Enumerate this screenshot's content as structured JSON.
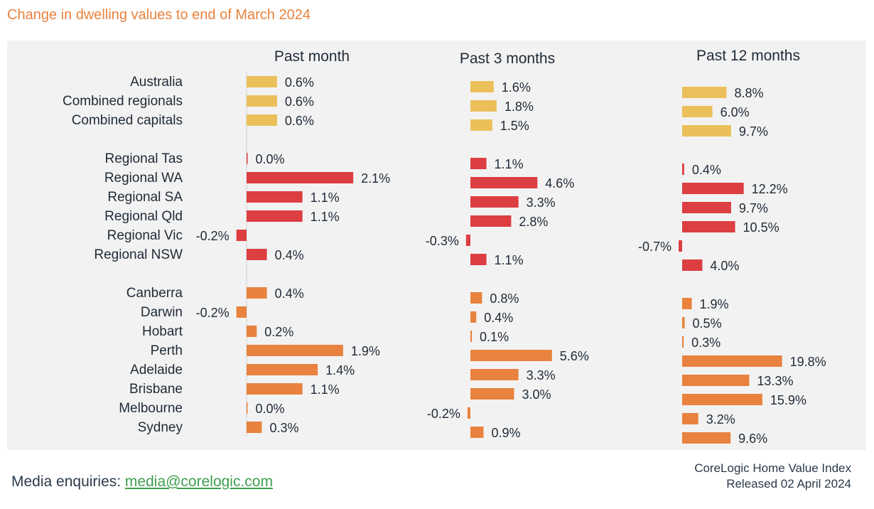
{
  "page": {
    "title": "Change in dwelling values to end of March 2024",
    "footer_label": "Media enquiries: ",
    "footer_email": "media@corelogic.com",
    "source_line1": "CoreLogic Home Value Index",
    "source_line2": "Released 02 April 2024"
  },
  "chart_data": {
    "type": "bar",
    "orientation": "horizontal",
    "title": "Change in dwelling values to end of March 2024",
    "categories": [
      "Australia",
      "Combined regionals",
      "Combined capitals",
      "Regional Tas",
      "Regional WA",
      "Regional SA",
      "Regional Qld",
      "Regional Vic",
      "Regional NSW",
      "Canberra",
      "Darwin",
      "Hobart",
      "Perth",
      "Adelaide",
      "Brisbane",
      "Melbourne",
      "Sydney"
    ],
    "groups": [
      "national",
      "national",
      "national",
      "regional",
      "regional",
      "regional",
      "regional",
      "regional",
      "regional",
      "capital",
      "capital",
      "capital",
      "capital",
      "capital",
      "capital",
      "capital",
      "capital"
    ],
    "colors": {
      "national": "#EBC05A",
      "regional": "#DC3E42",
      "capital": "#E8823E"
    },
    "series": [
      {
        "name": "Past month",
        "values": [
          0.6,
          0.6,
          0.6,
          0.0,
          2.1,
          1.1,
          1.1,
          -0.2,
          0.4,
          0.4,
          -0.2,
          0.2,
          1.9,
          1.4,
          1.1,
          0.0,
          0.3
        ],
        "labels": [
          "0.6%",
          "0.6%",
          "0.6%",
          "0.0%",
          "2.1%",
          "1.1%",
          "1.1%",
          "-0.2%",
          "0.4%",
          "0.4%",
          "-0.2%",
          "0.2%",
          "1.9%",
          "1.4%",
          "1.1%",
          "0.0%",
          "0.3%"
        ]
      },
      {
        "name": "Past 3 months",
        "values": [
          1.6,
          1.8,
          1.5,
          1.1,
          4.6,
          3.3,
          2.8,
          -0.3,
          1.1,
          0.8,
          0.4,
          0.1,
          5.6,
          3.3,
          3.0,
          -0.2,
          0.9
        ],
        "labels": [
          "1.6%",
          "1.8%",
          "1.5%",
          "1.1%",
          "4.6%",
          "3.3%",
          "2.8%",
          "-0.3%",
          "1.1%",
          "0.8%",
          "0.4%",
          "0.1%",
          "5.6%",
          "3.3%",
          "3.0%",
          "-0.2%",
          "0.9%"
        ]
      },
      {
        "name": "Past 12 months",
        "values": [
          8.8,
          6.0,
          9.7,
          0.4,
          12.2,
          9.7,
          10.5,
          -0.7,
          4.0,
          1.9,
          0.5,
          0.3,
          19.8,
          13.3,
          15.9,
          3.2,
          9.6
        ],
        "labels": [
          "8.8%",
          "6.0%",
          "9.7%",
          "0.4%",
          "12.2%",
          "9.7%",
          "10.5%",
          "-0.7%",
          "4.0%",
          "1.9%",
          "0.5%",
          "0.3%",
          "19.8%",
          "13.3%",
          "15.9%",
          "3.2%",
          "9.6%"
        ]
      }
    ]
  }
}
